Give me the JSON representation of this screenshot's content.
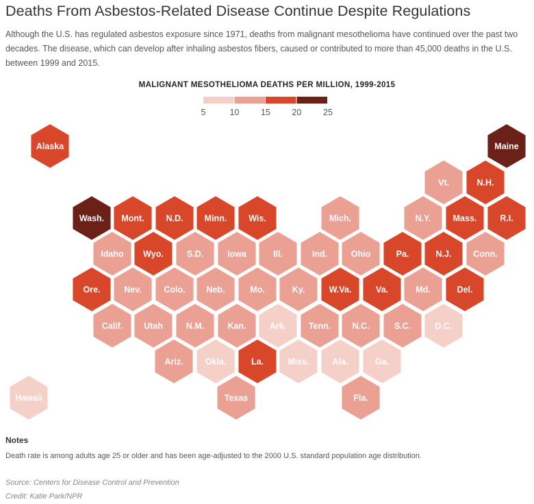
{
  "title": "Deaths From Asbestos-Related Disease Continue Despite Regulations",
  "subtitle": "Although the U.S. has regulated asbestos exposure since 1971, deaths from malignant mesothelioma have continued over the past two decades. The disease, which can develop after inhaling asbestos fibers, caused or contributed to more than 45,000 deaths in the U.S. between 1999 and 2015.",
  "chart_data": {
    "type": "hex-tile-map",
    "title": "MALIGNANT MESOTHELIOMA DEATHS PER MILLION, 1999-2015",
    "legend": {
      "ticks": [
        "5",
        "10",
        "15",
        "20",
        "25"
      ],
      "bins": [
        {
          "range": [
            5,
            10
          ],
          "color": "#f5d0c8"
        },
        {
          "range": [
            10,
            15
          ],
          "color": "#eba094"
        },
        {
          "range": [
            15,
            20
          ],
          "color": "#d9472b"
        },
        {
          "range": [
            20,
            25
          ],
          "color": "#6b2117"
        }
      ]
    },
    "states": [
      {
        "label": "Alaska",
        "bin": "15-20"
      },
      {
        "label": "Maine",
        "bin": "20-25"
      },
      {
        "label": "Vt.",
        "bin": "10-15"
      },
      {
        "label": "N.H.",
        "bin": "15-20"
      },
      {
        "label": "Wash.",
        "bin": "20-25"
      },
      {
        "label": "Mont.",
        "bin": "15-20"
      },
      {
        "label": "N.D.",
        "bin": "15-20"
      },
      {
        "label": "Minn.",
        "bin": "15-20"
      },
      {
        "label": "Wis.",
        "bin": "15-20"
      },
      {
        "label": "Mich.",
        "bin": "10-15"
      },
      {
        "label": "N.Y.",
        "bin": "10-15"
      },
      {
        "label": "Mass.",
        "bin": "15-20"
      },
      {
        "label": "R.I.",
        "bin": "15-20"
      },
      {
        "label": "Idaho",
        "bin": "10-15"
      },
      {
        "label": "Wyo.",
        "bin": "15-20"
      },
      {
        "label": "S.D.",
        "bin": "10-15"
      },
      {
        "label": "Iowa",
        "bin": "10-15"
      },
      {
        "label": "Ill.",
        "bin": "10-15"
      },
      {
        "label": "Ind.",
        "bin": "10-15"
      },
      {
        "label": "Ohio",
        "bin": "10-15"
      },
      {
        "label": "Pa.",
        "bin": "15-20"
      },
      {
        "label": "N.J.",
        "bin": "15-20"
      },
      {
        "label": "Conn.",
        "bin": "10-15"
      },
      {
        "label": "Ore.",
        "bin": "15-20"
      },
      {
        "label": "Nev.",
        "bin": "10-15"
      },
      {
        "label": "Colo.",
        "bin": "10-15"
      },
      {
        "label": "Neb.",
        "bin": "10-15"
      },
      {
        "label": "Mo.",
        "bin": "10-15"
      },
      {
        "label": "Ky.",
        "bin": "10-15"
      },
      {
        "label": "W.Va.",
        "bin": "15-20"
      },
      {
        "label": "Va.",
        "bin": "15-20"
      },
      {
        "label": "Md.",
        "bin": "10-15"
      },
      {
        "label": "Del.",
        "bin": "15-20"
      },
      {
        "label": "Calif.",
        "bin": "10-15"
      },
      {
        "label": "Utah",
        "bin": "10-15"
      },
      {
        "label": "N.M.",
        "bin": "10-15"
      },
      {
        "label": "Kan.",
        "bin": "10-15"
      },
      {
        "label": "Ark.",
        "bin": "5-10"
      },
      {
        "label": "Tenn.",
        "bin": "10-15"
      },
      {
        "label": "N.C.",
        "bin": "10-15"
      },
      {
        "label": "S.C.",
        "bin": "10-15"
      },
      {
        "label": "D.C.",
        "bin": "5-10"
      },
      {
        "label": "Ariz.",
        "bin": "10-15"
      },
      {
        "label": "Okla.",
        "bin": "5-10"
      },
      {
        "label": "La.",
        "bin": "15-20"
      },
      {
        "label": "Miss.",
        "bin": "5-10"
      },
      {
        "label": "Ala.",
        "bin": "5-10"
      },
      {
        "label": "Ga.",
        "bin": "5-10"
      },
      {
        "label": "Hawaii",
        "bin": "5-10"
      },
      {
        "label": "Texas",
        "bin": "10-15"
      },
      {
        "label": "Fla.",
        "bin": "10-15"
      }
    ]
  },
  "notes_heading": "Notes",
  "notes": "Death rate is among adults age 25 or older and has been age-adjusted to the 2000 U.S. standard population age distribution.",
  "source": "Source: Centers for Disease Control and Prevention",
  "credit": "Credit: Katie Park/NPR"
}
